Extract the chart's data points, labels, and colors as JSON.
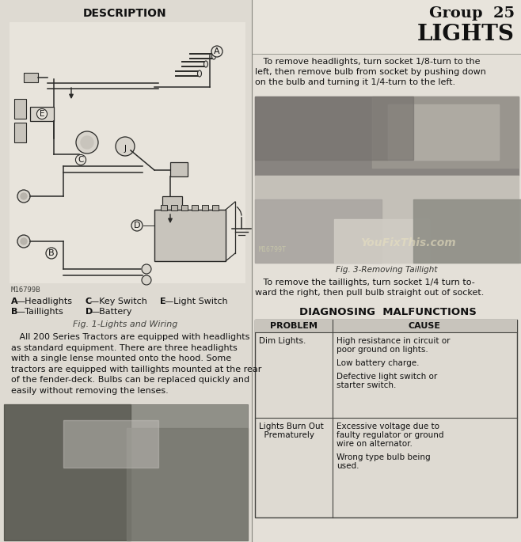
{
  "page_bg": "#e8e4dc",
  "left_bg": "#e2ded6",
  "right_bg": "#dedad2",
  "header_bg": "#e0dcd4",
  "title_group": "Group  25",
  "title_lights": "LIGHTS",
  "description_title": "DESCRIPTION",
  "headlight_remove_text": "   To remove headlights, turn socket 1/8-turn to the\nleft, then remove bulb from socket by pushing down\non the bulb and turning it 1/4-turn to the left.",
  "fig3_caption": "Fig. 3-Removing Taillight",
  "taillight_remove_text": "   To remove the taillights, turn socket 1/4 turn to-\nward the right, then pull bulb straight out of socket.",
  "diag_title": "DIAGNOSING  MALFUNCTIONS",
  "table_headers": [
    "PROBLEM",
    "CAUSE"
  ],
  "legend_line1_A": "A",
  "legend_line1_Atext": "—Headlights",
  "legend_line1_C": "C",
  "legend_line1_Ctext": "—Key Switch",
  "legend_line1_E": "E",
  "legend_line1_Etext": "—Light Switch",
  "legend_line2_B": "B",
  "legend_line2_Btext": "—Taillights",
  "legend_line2_D": "D",
  "legend_line2_Dtext": "—Battery",
  "fig1_caption": "Fig. 1-Lights and Wiring",
  "body_text1": "   All 200 Series ",
  "body_text1b": "Tractors",
  "body_text1c": " are equipped with headlights\nas standard equipment. There are three headlights\nwith a single lense mounted onto the hood. Some\ntractors are equipped with ",
  "body_text1d": "taillights",
  "body_text1e": " mounted at the rear\nof the fender-deck. Bulbs can be replaced quickly and\neasily without removing the lenses.",
  "body_text": "   All 200 Series Tractors are equipped with headlights\nas standard equipment. There are three headlights\nwith a single lense mounted onto the hood. Some\ntractors are equipped with taillights mounted at the rear\nof the fender-deck. Bulbs can be replaced quickly and\neasily without removing the lenses.",
  "watermark": "YouFixThis.com",
  "fig_num_left": "M16799B",
  "fig_num_photo": "M16799T",
  "cause1_line1": "High resistance in circuit or",
  "cause1_line2": "poor ground on lights.",
  "cause1_line3": "Low battery charge.",
  "cause1_line4": "Defective light switch or",
  "cause1_line5": "starter switch.",
  "cause2_line1": "Excessive voltage due to",
  "cause2_line2": "faulty regulator or ground",
  "cause2_line3": "wire on alternator.",
  "cause2_line4": "Wrong type bulb being",
  "cause2_line5": "used."
}
